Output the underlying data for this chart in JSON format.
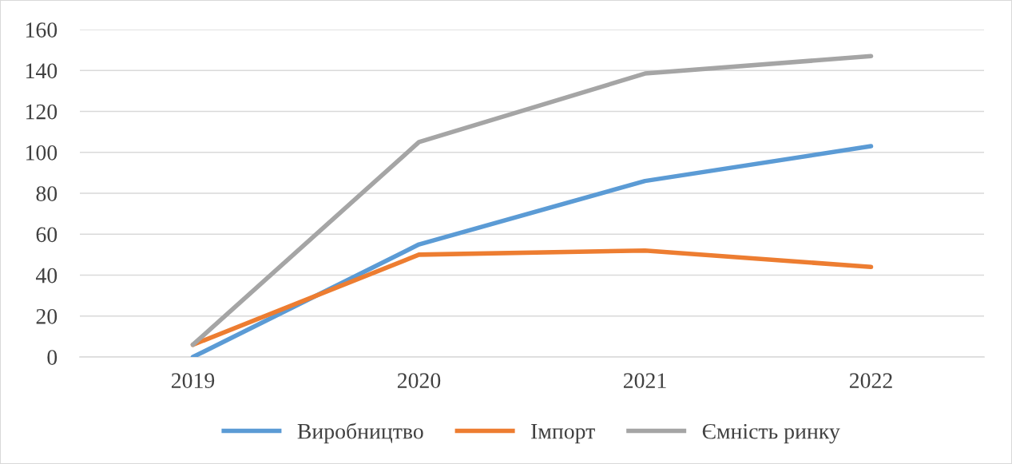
{
  "chart_data": {
    "type": "line",
    "categories": [
      "2019",
      "2020",
      "2021",
      "2022"
    ],
    "series": [
      {
        "name": "Виробництво",
        "color": "#5b9bd5",
        "values": [
          0,
          55,
          86,
          103
        ]
      },
      {
        "name": "Імпорт",
        "color": "#ed7d31",
        "values": [
          6,
          50,
          52,
          44
        ]
      },
      {
        "name": "Ємність ринку",
        "color": "#a5a5a5",
        "values": [
          6,
          105,
          138.5,
          147
        ]
      }
    ],
    "ylim": [
      0,
      160
    ],
    "yticks": [
      0,
      20,
      40,
      60,
      80,
      100,
      120,
      140,
      160
    ],
    "grid": "y",
    "legend": "bottom",
    "marker": "none",
    "line_style": "solid"
  }
}
